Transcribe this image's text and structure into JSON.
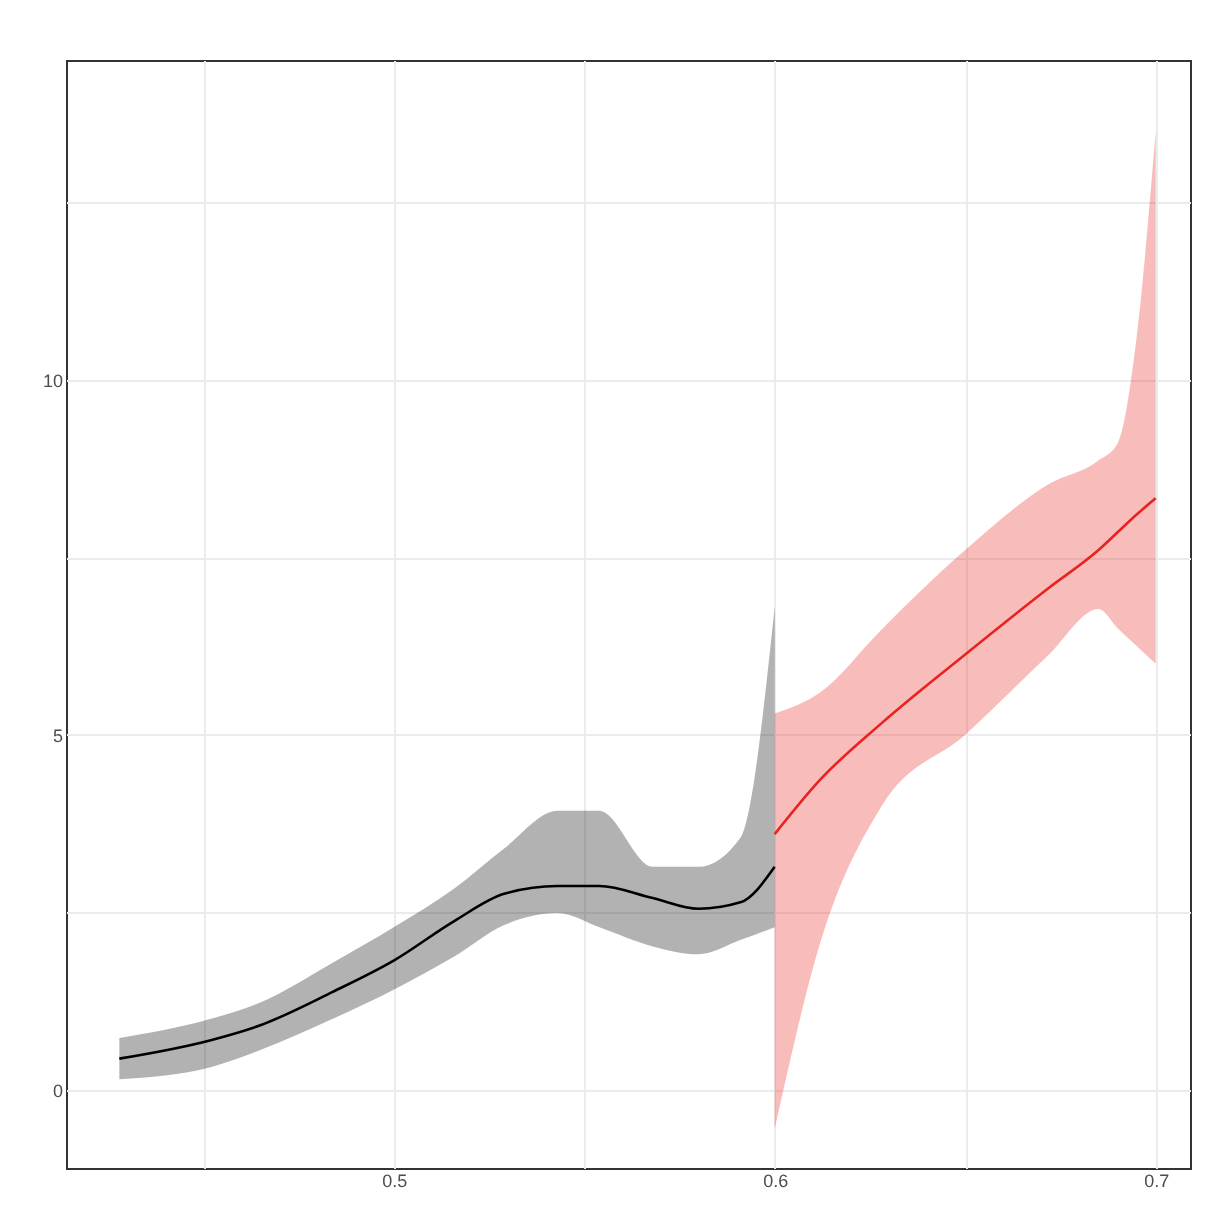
{
  "chart_data": {
    "type": "line",
    "xlim": [
      0.414,
      0.709
    ],
    "ylim": [
      -1.1,
      14.5
    ],
    "xticks": [
      {
        "value": 0.45,
        "label": null
      },
      0.5,
      {
        "value": 0.55,
        "label": null
      },
      0.6,
      {
        "value": 0.65,
        "label": null
      },
      0.7
    ],
    "yticks": [
      0,
      {
        "value": 2.5,
        "label": null
      },
      5,
      {
        "value": 7.5,
        "label": null
      },
      10,
      {
        "value": 12.5,
        "label": null
      }
    ],
    "grid": true,
    "marker": "none",
    "line_style": "solid",
    "series": [
      {
        "color": "#000000",
        "x": [
          0.428,
          0.452,
          0.465,
          0.484,
          0.5,
          0.516,
          0.529,
          0.543,
          0.554,
          0.568,
          0.58,
          0.591,
          0.6
        ],
        "values": [
          0.44,
          0.7,
          0.91,
          1.38,
          1.82,
          2.38,
          2.76,
          2.87,
          2.87,
          2.7,
          2.55,
          2.64,
          3.14
        ],
        "lower": [
          0.15,
          0.32,
          0.56,
          1.0,
          1.41,
          1.88,
          2.32,
          2.49,
          2.29,
          2.02,
          1.91,
          2.11,
          2.29
        ],
        "upper": [
          0.73,
          1.0,
          1.23,
          1.79,
          2.29,
          2.84,
          3.4,
          3.93,
          3.93,
          3.14,
          3.14,
          3.55,
          6.8
        ]
      },
      {
        "color": "#e8231f",
        "x": [
          0.6,
          0.612,
          0.628,
          0.65,
          0.672,
          0.685,
          0.69,
          0.695,
          0.7
        ],
        "values": [
          3.6,
          4.37,
          5.16,
          6.13,
          7.07,
          7.6,
          7.85,
          8.1,
          8.33
        ],
        "lower": [
          -0.55,
          2.08,
          3.99,
          5.0,
          6.13,
          6.77,
          6.5,
          6.25,
          6.0
        ],
        "upper": [
          5.3,
          5.6,
          6.48,
          7.6,
          8.53,
          8.86,
          9.1,
          10.6,
          13.5
        ]
      }
    ]
  }
}
